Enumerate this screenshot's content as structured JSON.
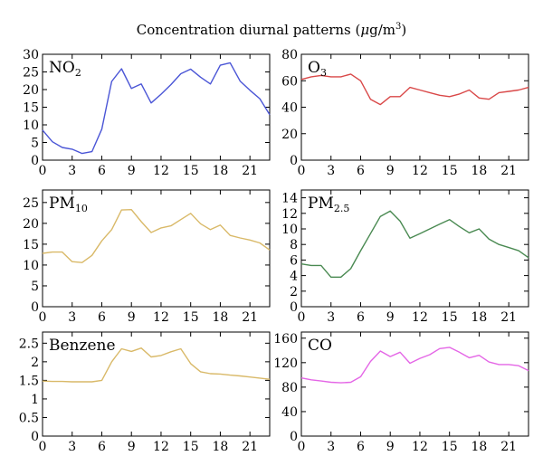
{
  "figure": {
    "title_main": "Concentration diurnal patterns (",
    "title_mu": "μ",
    "title_unit_g": "g/m",
    "title_sup": "3",
    "title_close": ")"
  },
  "chart_data": [
    {
      "type": "line",
      "id": "no2",
      "label_main": "NO",
      "label_sub": "2",
      "color": "#4a55d6",
      "x": [
        0,
        1,
        2,
        3,
        4,
        5,
        6,
        7,
        8,
        9,
        10,
        11,
        12,
        13,
        14,
        15,
        16,
        17,
        18,
        19,
        20,
        21,
        22,
        23
      ],
      "values": [
        8.5,
        5.2,
        3.6,
        3.1,
        1.9,
        2.4,
        8.8,
        22.3,
        25.9,
        20.3,
        21.6,
        16.2,
        18.7,
        21.4,
        24.5,
        25.8,
        23.5,
        21.6,
        26.9,
        27.6,
        22.4,
        19.8,
        17.4,
        12.9
      ],
      "xlim": [
        0,
        23
      ],
      "ylim": [
        0,
        30
      ],
      "xticks": [
        "0",
        "3",
        "6",
        "9",
        "12",
        "15",
        "18",
        "21"
      ],
      "yticks": [
        "0",
        "5",
        "10",
        "15",
        "20",
        "25",
        "30"
      ]
    },
    {
      "type": "line",
      "id": "o3",
      "label_main": "O",
      "label_sub": "3",
      "color": "#d94848",
      "x": [
        0,
        1,
        2,
        3,
        4,
        5,
        6,
        7,
        8,
        9,
        10,
        11,
        12,
        13,
        14,
        15,
        16,
        17,
        18,
        19,
        20,
        21,
        22,
        23
      ],
      "values": [
        61,
        63,
        64,
        63,
        63,
        65,
        60,
        46,
        42,
        48,
        48,
        55,
        53,
        51,
        49,
        48,
        50,
        53,
        47,
        46,
        51,
        52,
        53,
        55
      ],
      "xlim": [
        0,
        23
      ],
      "ylim": [
        0,
        80
      ],
      "xticks": [
        "0",
        "3",
        "6",
        "9",
        "12",
        "15",
        "18",
        "21"
      ],
      "yticks": [
        "0",
        "20",
        "40",
        "60",
        "80"
      ]
    },
    {
      "type": "line",
      "id": "pm10",
      "label_main": "PM",
      "label_sub": "10",
      "color": "#d9b968",
      "x": [
        0,
        1,
        2,
        3,
        4,
        5,
        6,
        7,
        8,
        9,
        10,
        11,
        12,
        13,
        14,
        15,
        16,
        17,
        18,
        19,
        20,
        21,
        22,
        23
      ],
      "values": [
        12.8,
        13.1,
        13.1,
        10.8,
        10.6,
        12.3,
        15.8,
        18.5,
        23.2,
        23.3,
        20.4,
        17.8,
        18.9,
        19.4,
        20.9,
        22.4,
        19.9,
        18.5,
        19.6,
        17.1,
        16.5,
        16.0,
        15.3,
        13.6
      ],
      "xlim": [
        0,
        23
      ],
      "ylim": [
        0,
        28
      ],
      "xticks": [
        "0",
        "3",
        "6",
        "9",
        "12",
        "15",
        "18",
        "21"
      ],
      "yticks": [
        "0",
        "5",
        "10",
        "15",
        "20",
        "25"
      ]
    },
    {
      "type": "line",
      "id": "pm25",
      "label_main": "PM",
      "label_sub": "2.5",
      "color": "#4a8a52",
      "x": [
        0,
        1,
        2,
        3,
        4,
        5,
        6,
        7,
        8,
        9,
        10,
        11,
        12,
        13,
        14,
        15,
        16,
        17,
        18,
        19,
        20,
        21,
        22,
        23
      ],
      "values": [
        5.5,
        5.3,
        5.3,
        3.8,
        3.8,
        4.9,
        7.2,
        9.4,
        11.6,
        12.3,
        11.0,
        8.8,
        9.4,
        10.0,
        10.6,
        11.2,
        10.3,
        9.5,
        10.0,
        8.7,
        8.0,
        7.6,
        7.2,
        6.3
      ],
      "xlim": [
        0,
        23
      ],
      "ylim": [
        0,
        15
      ],
      "xticks": [
        "0",
        "3",
        "6",
        "9",
        "12",
        "15",
        "18",
        "21"
      ],
      "yticks": [
        "0",
        "2",
        "4",
        "6",
        "8",
        "10",
        "12",
        "14"
      ]
    },
    {
      "type": "line",
      "id": "benzene",
      "label_main": "Benzene",
      "label_sub": "",
      "color": "#d9b968",
      "x": [
        0,
        1,
        2,
        3,
        4,
        5,
        6,
        7,
        8,
        9,
        10,
        11,
        12,
        13,
        14,
        15,
        16,
        17,
        18,
        19,
        20,
        21,
        22,
        23
      ],
      "values": [
        1.48,
        1.47,
        1.47,
        1.46,
        1.46,
        1.46,
        1.5,
        2.0,
        2.35,
        2.28,
        2.37,
        2.13,
        2.17,
        2.27,
        2.35,
        1.95,
        1.73,
        1.68,
        1.67,
        1.64,
        1.62,
        1.59,
        1.56,
        1.53
      ],
      "xlim": [
        0,
        23
      ],
      "ylim": [
        0,
        2.8
      ],
      "xticks": [
        "0",
        "3",
        "6",
        "9",
        "12",
        "15",
        "18",
        "21"
      ],
      "yticks": [
        "0",
        "0.5",
        "1",
        "1.5",
        "2",
        "2.5"
      ]
    },
    {
      "type": "line",
      "id": "co",
      "label_main": "CO",
      "label_sub": "",
      "color": "#e466e6",
      "x": [
        0,
        1,
        2,
        3,
        4,
        5,
        6,
        7,
        8,
        9,
        10,
        11,
        12,
        13,
        14,
        15,
        16,
        17,
        18,
        19,
        20,
        21,
        22,
        23
      ],
      "values": [
        95,
        92,
        90,
        88,
        87,
        88,
        97,
        122,
        139,
        130,
        137,
        119,
        127,
        133,
        143,
        145,
        137,
        128,
        132,
        121,
        117,
        117,
        115,
        107
      ],
      "xlim": [
        0,
        23
      ],
      "ylim": [
        0,
        170
      ],
      "xticks": [
        "0",
        "3",
        "6",
        "9",
        "12",
        "15",
        "18",
        "21"
      ],
      "yticks": [
        "0",
        "40",
        "80",
        "120",
        "160"
      ]
    }
  ]
}
